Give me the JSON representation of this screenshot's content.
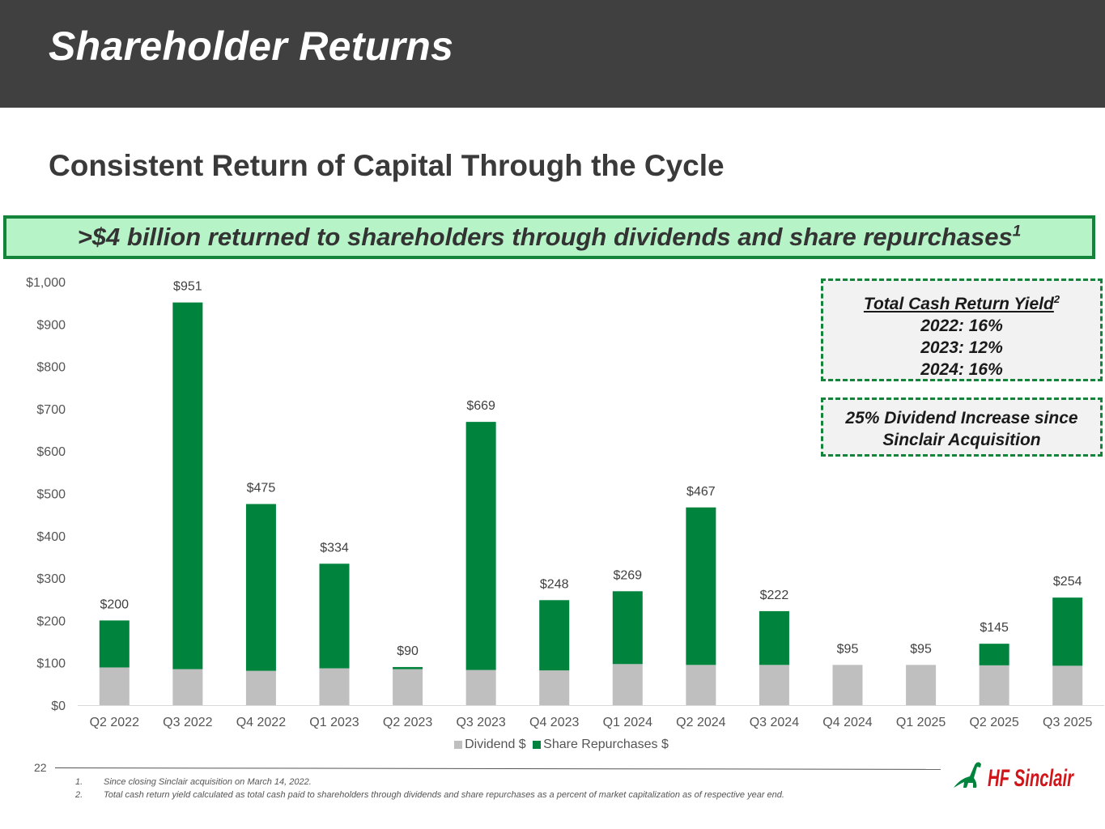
{
  "header": {
    "title": "Shareholder Returns"
  },
  "subtitle": "Consistent Return of Capital Through the Cycle",
  "banner": {
    "text": ">$4 billion returned to shareholders through dividends and share repurchases",
    "sup": "1"
  },
  "callouts": {
    "yield_title": "Total Cash Return Yield",
    "yield_sup": "2",
    "yield_lines": [
      "2022: 16%",
      "2023: 12%",
      "2024: 16%"
    ],
    "dividend_lines": [
      "25% Dividend Increase since",
      "Sinclair Acquisition"
    ]
  },
  "chart_data": {
    "type": "bar",
    "stacked": true,
    "categories": [
      "Q2 2022",
      "Q3 2022",
      "Q4 2022",
      "Q1 2023",
      "Q2 2023",
      "Q3 2023",
      "Q4 2023",
      "Q1 2024",
      "Q2 2024",
      "Q3 2024",
      "Q4 2024",
      "Q1 2025",
      "Q2 2025",
      "Q3 2025"
    ],
    "series": [
      {
        "name": "Dividend $",
        "color": "#bfbfbf",
        "values": [
          89,
          85,
          81,
          87,
          85,
          83,
          82,
          97,
          95,
          95,
          95,
          95,
          94,
          93
        ]
      },
      {
        "name": "Share Repurchases $",
        "color": "#00843d",
        "values": [
          111,
          866,
          394,
          247,
          5,
          586,
          166,
          172,
          372,
          127,
          0,
          0,
          51,
          161
        ]
      }
    ],
    "totals_labels": [
      "$200",
      "$951",
      "$475",
      "$334",
      "$90",
      "$669",
      "$248",
      "$269",
      "$467",
      "$222",
      "$95",
      "$95",
      "$145",
      "$254"
    ],
    "ylim": [
      0,
      1000
    ],
    "yticks": [
      0,
      100,
      200,
      300,
      400,
      500,
      600,
      700,
      800,
      900,
      1000
    ],
    "ytick_labels": [
      "$0",
      "$100",
      "$200",
      "$300",
      "$400",
      "$500",
      "$600",
      "$700",
      "$800",
      "$900",
      "$1,000"
    ],
    "legend_position": "bottom",
    "grid": false
  },
  "footer": {
    "page_number": "22",
    "footnotes": [
      {
        "num": "1.",
        "text": "Since closing Sinclair acquisition on March 14, 2022."
      },
      {
        "num": "2.",
        "text": "Total cash return yield calculated as total cash paid to shareholders through dividends and share repurchases as a percent of market capitalization as of respective year end."
      }
    ],
    "logo_text": "HF Sinclair"
  }
}
